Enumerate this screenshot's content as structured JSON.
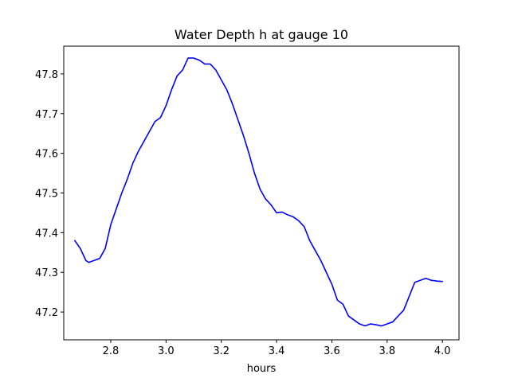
{
  "chart_data": {
    "type": "line",
    "title": "Water Depth h at gauge 10",
    "xlabel": "hours",
    "ylabel": "",
    "xlim": [
      2.63,
      4.06
    ],
    "ylim": [
      47.13,
      47.87
    ],
    "xticks": [
      2.8,
      3.0,
      3.2,
      3.4,
      3.6,
      3.8,
      4.0
    ],
    "xtick_labels": [
      "2.8",
      "3.0",
      "3.2",
      "3.4",
      "3.6",
      "3.8",
      "4.0"
    ],
    "yticks": [
      47.2,
      47.3,
      47.4,
      47.5,
      47.6,
      47.7,
      47.8
    ],
    "ytick_labels": [
      "47.2",
      "47.3",
      "47.4",
      "47.5",
      "47.6",
      "47.7",
      "47.8"
    ],
    "grid": false,
    "series": [
      {
        "color": "#0000ff",
        "x": [
          2.67,
          2.69,
          2.71,
          2.72,
          2.74,
          2.76,
          2.78,
          2.8,
          2.82,
          2.84,
          2.86,
          2.88,
          2.9,
          2.92,
          2.94,
          2.96,
          2.98,
          3.0,
          3.02,
          3.04,
          3.06,
          3.08,
          3.1,
          3.12,
          3.14,
          3.16,
          3.18,
          3.2,
          3.22,
          3.24,
          3.26,
          3.28,
          3.3,
          3.32,
          3.34,
          3.36,
          3.38,
          3.4,
          3.42,
          3.44,
          3.46,
          3.48,
          3.5,
          3.52,
          3.54,
          3.56,
          3.58,
          3.6,
          3.62,
          3.64,
          3.66,
          3.68,
          3.7,
          3.72,
          3.74,
          3.76,
          3.78,
          3.8,
          3.82,
          3.84,
          3.86,
          3.88,
          3.9,
          3.92,
          3.94,
          3.96,
          3.98,
          4.0
        ],
        "y": [
          47.38,
          47.36,
          47.33,
          47.325,
          47.33,
          47.335,
          47.36,
          47.42,
          47.46,
          47.5,
          47.535,
          47.575,
          47.605,
          47.63,
          47.655,
          47.68,
          47.69,
          47.72,
          47.76,
          47.795,
          47.81,
          47.84,
          47.84,
          47.835,
          47.825,
          47.825,
          47.81,
          47.785,
          47.76,
          47.725,
          47.685,
          47.645,
          47.6,
          47.55,
          47.51,
          47.485,
          47.47,
          47.45,
          47.452,
          47.445,
          47.44,
          47.43,
          47.415,
          47.38,
          47.355,
          47.33,
          47.3,
          47.27,
          47.23,
          47.22,
          47.19,
          47.18,
          47.17,
          47.165,
          47.17,
          47.168,
          47.165,
          47.17,
          47.175,
          47.19,
          47.205,
          47.24,
          47.275,
          47.28,
          47.285,
          47.28,
          47.278,
          47.277
        ]
      }
    ]
  }
}
